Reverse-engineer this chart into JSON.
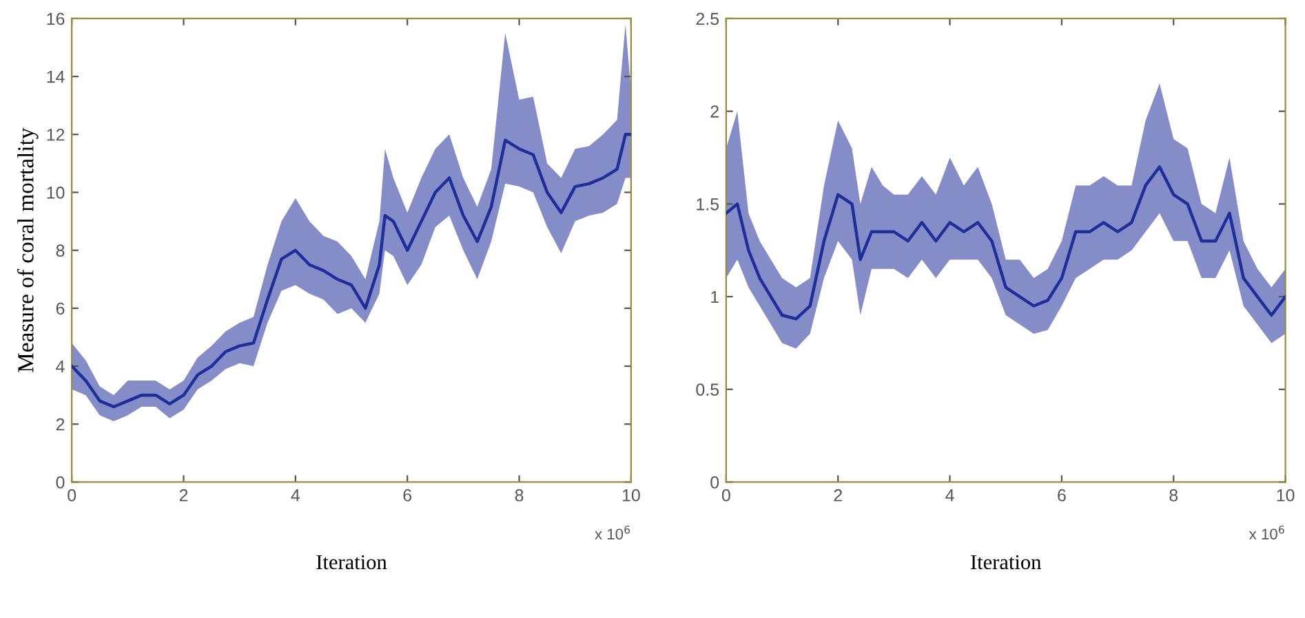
{
  "chart_data": [
    {
      "type": "line",
      "ylabel": "Measure of coral mortality",
      "xlabel": "Iteration",
      "annotations": [
        "x 10$^{6}$"
      ],
      "xlim": [
        0,
        10
      ],
      "xticks": [
        0,
        2,
        4,
        6,
        8,
        10
      ],
      "ylim": [
        0,
        16
      ],
      "yticks": [
        0,
        2,
        4,
        6,
        8,
        10,
        12,
        14,
        16
      ],
      "grid": false,
      "series": [
        {
          "color": "#1f2f9a",
          "x": [
            0,
            0.25,
            0.5,
            0.75,
            1.0,
            1.25,
            1.5,
            1.75,
            2.0,
            2.25,
            2.5,
            2.75,
            3.0,
            3.25,
            3.5,
            3.75,
            4.0,
            4.25,
            4.5,
            4.75,
            5.0,
            5.25,
            5.5,
            5.6,
            5.75,
            6.0,
            6.25,
            6.5,
            6.75,
            7.0,
            7.25,
            7.5,
            7.75,
            8.0,
            8.25,
            8.5,
            8.75,
            9.0,
            9.25,
            9.5,
            9.75,
            9.9,
            10
          ],
          "values": [
            4.0,
            3.5,
            2.8,
            2.6,
            2.8,
            3.0,
            3.0,
            2.7,
            3.0,
            3.7,
            4.0,
            4.5,
            4.7,
            4.8,
            6.3,
            7.7,
            8.0,
            7.5,
            7.3,
            7.0,
            6.8,
            6.0,
            7.5,
            9.2,
            9.0,
            8.0,
            9.0,
            10.0,
            10.5,
            9.2,
            8.3,
            9.5,
            11.8,
            11.5,
            11.3,
            10.0,
            9.3,
            10.2,
            10.3,
            10.5,
            10.8,
            12.0,
            12.0
          ],
          "lower": [
            3.2,
            3.0,
            2.3,
            2.1,
            2.3,
            2.6,
            2.6,
            2.2,
            2.5,
            3.2,
            3.5,
            3.9,
            4.1,
            4.0,
            5.5,
            6.6,
            6.8,
            6.5,
            6.3,
            5.8,
            6.0,
            5.5,
            6.5,
            8.0,
            7.8,
            6.8,
            7.5,
            8.8,
            9.2,
            8.0,
            7.0,
            8.3,
            10.3,
            10.2,
            10.0,
            8.8,
            7.9,
            9.0,
            9.2,
            9.3,
            9.6,
            10.5,
            10.5
          ],
          "upper": [
            4.8,
            4.2,
            3.3,
            3.0,
            3.5,
            3.5,
            3.5,
            3.2,
            3.5,
            4.3,
            4.7,
            5.2,
            5.5,
            5.7,
            7.5,
            9.0,
            9.8,
            9.0,
            8.5,
            8.3,
            7.8,
            7.0,
            9.0,
            11.5,
            10.5,
            9.3,
            10.5,
            11.5,
            12.0,
            10.5,
            9.5,
            10.8,
            15.5,
            13.2,
            13.3,
            11.0,
            10.5,
            11.5,
            11.6,
            12.0,
            12.5,
            15.8,
            13.5
          ]
        }
      ]
    },
    {
      "type": "line",
      "xlabel": "Iteration",
      "annotations": [
        "x 10$^{6}$"
      ],
      "xlim": [
        0,
        10
      ],
      "xticks": [
        0,
        2,
        4,
        6,
        8,
        10
      ],
      "ylim": [
        0,
        2.5
      ],
      "yticks": [
        0,
        0.5,
        1,
        1.5,
        2,
        2.5
      ],
      "grid": false,
      "series": [
        {
          "color": "#1f2f9a",
          "x": [
            0,
            0.2,
            0.4,
            0.6,
            0.8,
            1.0,
            1.25,
            1.5,
            1.75,
            2.0,
            2.25,
            2.4,
            2.6,
            2.8,
            3.0,
            3.25,
            3.5,
            3.75,
            4.0,
            4.25,
            4.5,
            4.75,
            5.0,
            5.25,
            5.5,
            5.75,
            6.0,
            6.25,
            6.5,
            6.75,
            7.0,
            7.25,
            7.5,
            7.75,
            8.0,
            8.25,
            8.5,
            8.75,
            9.0,
            9.25,
            9.5,
            9.75,
            10
          ],
          "values": [
            1.45,
            1.5,
            1.25,
            1.1,
            1.0,
            0.9,
            0.88,
            0.95,
            1.3,
            1.55,
            1.5,
            1.2,
            1.35,
            1.35,
            1.35,
            1.3,
            1.4,
            1.3,
            1.4,
            1.35,
            1.4,
            1.3,
            1.05,
            1.0,
            0.95,
            0.98,
            1.1,
            1.35,
            1.35,
            1.4,
            1.35,
            1.4,
            1.6,
            1.7,
            1.55,
            1.5,
            1.3,
            1.3,
            1.45,
            1.1,
            1.0,
            0.9,
            1.0
          ],
          "lower": [
            1.1,
            1.2,
            1.05,
            0.95,
            0.85,
            0.75,
            0.72,
            0.8,
            1.1,
            1.3,
            1.2,
            0.9,
            1.15,
            1.15,
            1.15,
            1.1,
            1.2,
            1.1,
            1.2,
            1.2,
            1.2,
            1.1,
            0.9,
            0.85,
            0.8,
            0.82,
            0.95,
            1.1,
            1.15,
            1.2,
            1.2,
            1.25,
            1.35,
            1.45,
            1.3,
            1.3,
            1.1,
            1.1,
            1.25,
            0.95,
            0.85,
            0.75,
            0.8
          ],
          "upper": [
            1.8,
            2.0,
            1.45,
            1.3,
            1.2,
            1.1,
            1.05,
            1.1,
            1.6,
            1.95,
            1.8,
            1.5,
            1.7,
            1.6,
            1.55,
            1.55,
            1.65,
            1.55,
            1.75,
            1.6,
            1.7,
            1.5,
            1.2,
            1.2,
            1.1,
            1.15,
            1.3,
            1.6,
            1.6,
            1.65,
            1.6,
            1.6,
            1.95,
            2.15,
            1.85,
            1.8,
            1.5,
            1.45,
            1.75,
            1.3,
            1.15,
            1.05,
            1.15
          ]
        }
      ]
    }
  ]
}
